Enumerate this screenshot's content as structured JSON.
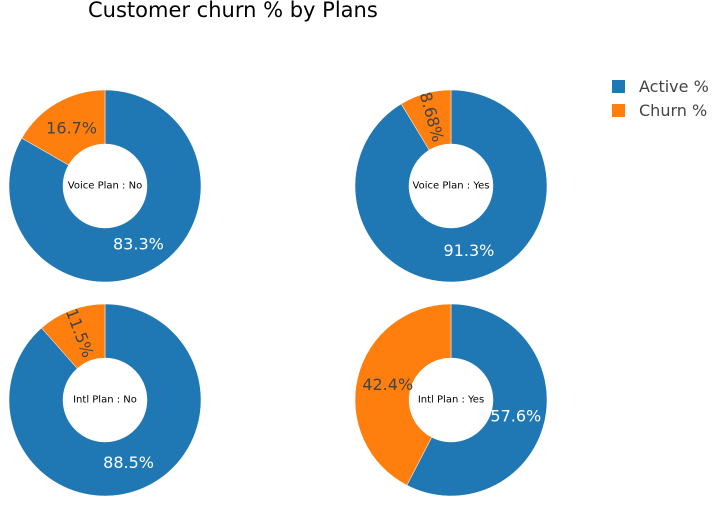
{
  "chart_data": {
    "type": "pie",
    "title": "Customer churn % by Plans",
    "legend_position": "top-right",
    "legend": [
      {
        "label": "Active %",
        "color": "#1f77b4"
      },
      {
        "label": "Churn %",
        "color": "#ff7f0e"
      }
    ],
    "charts": [
      {
        "center_label": "Voice Plan : No",
        "slices": [
          {
            "name": "Active %",
            "value": 83.3,
            "label": "83.3%",
            "color": "#1f77b4"
          },
          {
            "name": "Churn %",
            "value": 16.7,
            "label": "16.7%",
            "color": "#ff7f0e"
          }
        ]
      },
      {
        "center_label": "Voice Plan : Yes",
        "slices": [
          {
            "name": "Active %",
            "value": 91.32,
            "label": "91.3%",
            "color": "#1f77b4"
          },
          {
            "name": "Churn %",
            "value": 8.68,
            "label": "8.68%",
            "color": "#ff7f0e"
          }
        ]
      },
      {
        "center_label": "Intl Plan : No",
        "slices": [
          {
            "name": "Active %",
            "value": 88.5,
            "label": "88.5%",
            "color": "#1f77b4"
          },
          {
            "name": "Churn %",
            "value": 11.5,
            "label": "11.5%",
            "color": "#ff7f0e"
          }
        ]
      },
      {
        "center_label": "Intl Plan : Yes",
        "slices": [
          {
            "name": "Active %",
            "value": 57.6,
            "label": "57.6%",
            "color": "#1f77b4"
          },
          {
            "name": "Churn %",
            "value": 42.4,
            "label": "42.4%",
            "color": "#ff7f0e"
          }
        ]
      }
    ]
  }
}
